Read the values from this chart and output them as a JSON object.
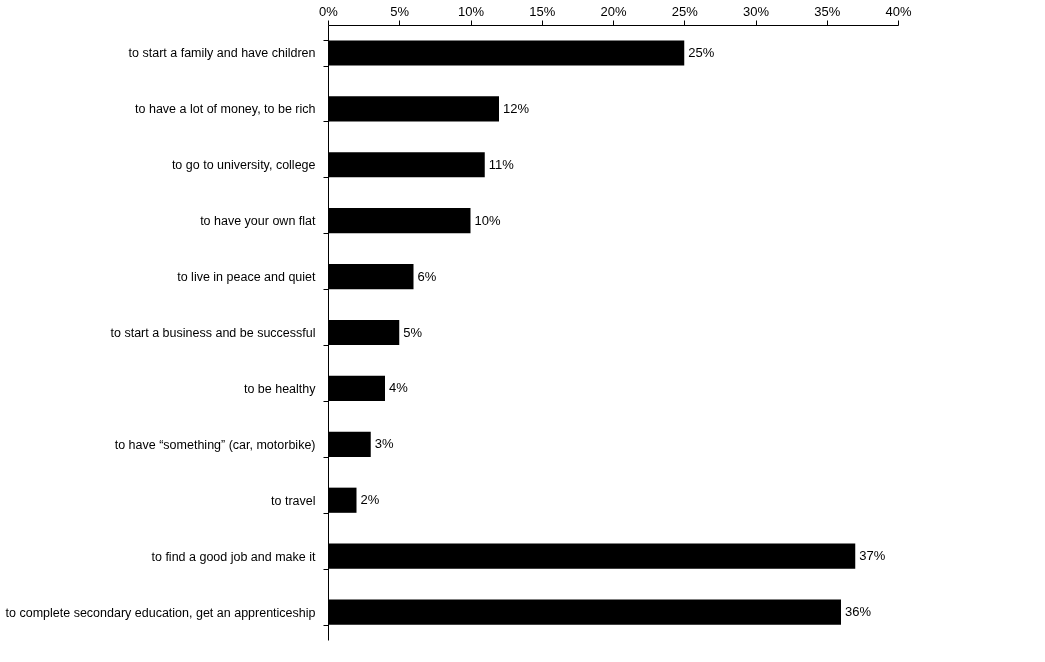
{
  "chart_data": {
    "type": "bar",
    "orientation": "horizontal",
    "categories": [
      "to start a family and have children",
      "to have a lot of money, to be rich",
      "to go to university, college",
      "to have your own flat",
      "to live in peace and quiet",
      "to start a business and be successful",
      "to be healthy",
      "to have “something” (car, motorbike)",
      "to travel",
      "to find a good job and make it",
      "to complete secondary education, get an apprenticeship"
    ],
    "values": [
      25,
      12,
      11,
      10,
      6,
      5,
      4,
      3,
      2,
      37,
      36
    ],
    "value_labels": [
      "25%",
      "12%",
      "11%",
      "10%",
      "6%",
      "5%",
      "4%",
      "3%",
      "2%",
      "37%",
      "36%"
    ],
    "color": "#000000",
    "xlim": [
      0,
      40
    ],
    "xticks": [
      {
        "value": 0,
        "label": "0%"
      },
      {
        "value": 5,
        "label": "5%"
      },
      {
        "value": 10,
        "label": "10%"
      },
      {
        "value": 15,
        "label": "15%"
      },
      {
        "value": 20,
        "label": "20%"
      },
      {
        "value": 25,
        "label": "25%"
      },
      {
        "value": 30,
        "label": "30%"
      },
      {
        "value": 35,
        "label": "35%"
      },
      {
        "value": 40,
        "label": "40%"
      }
    ],
    "grid": false
  }
}
